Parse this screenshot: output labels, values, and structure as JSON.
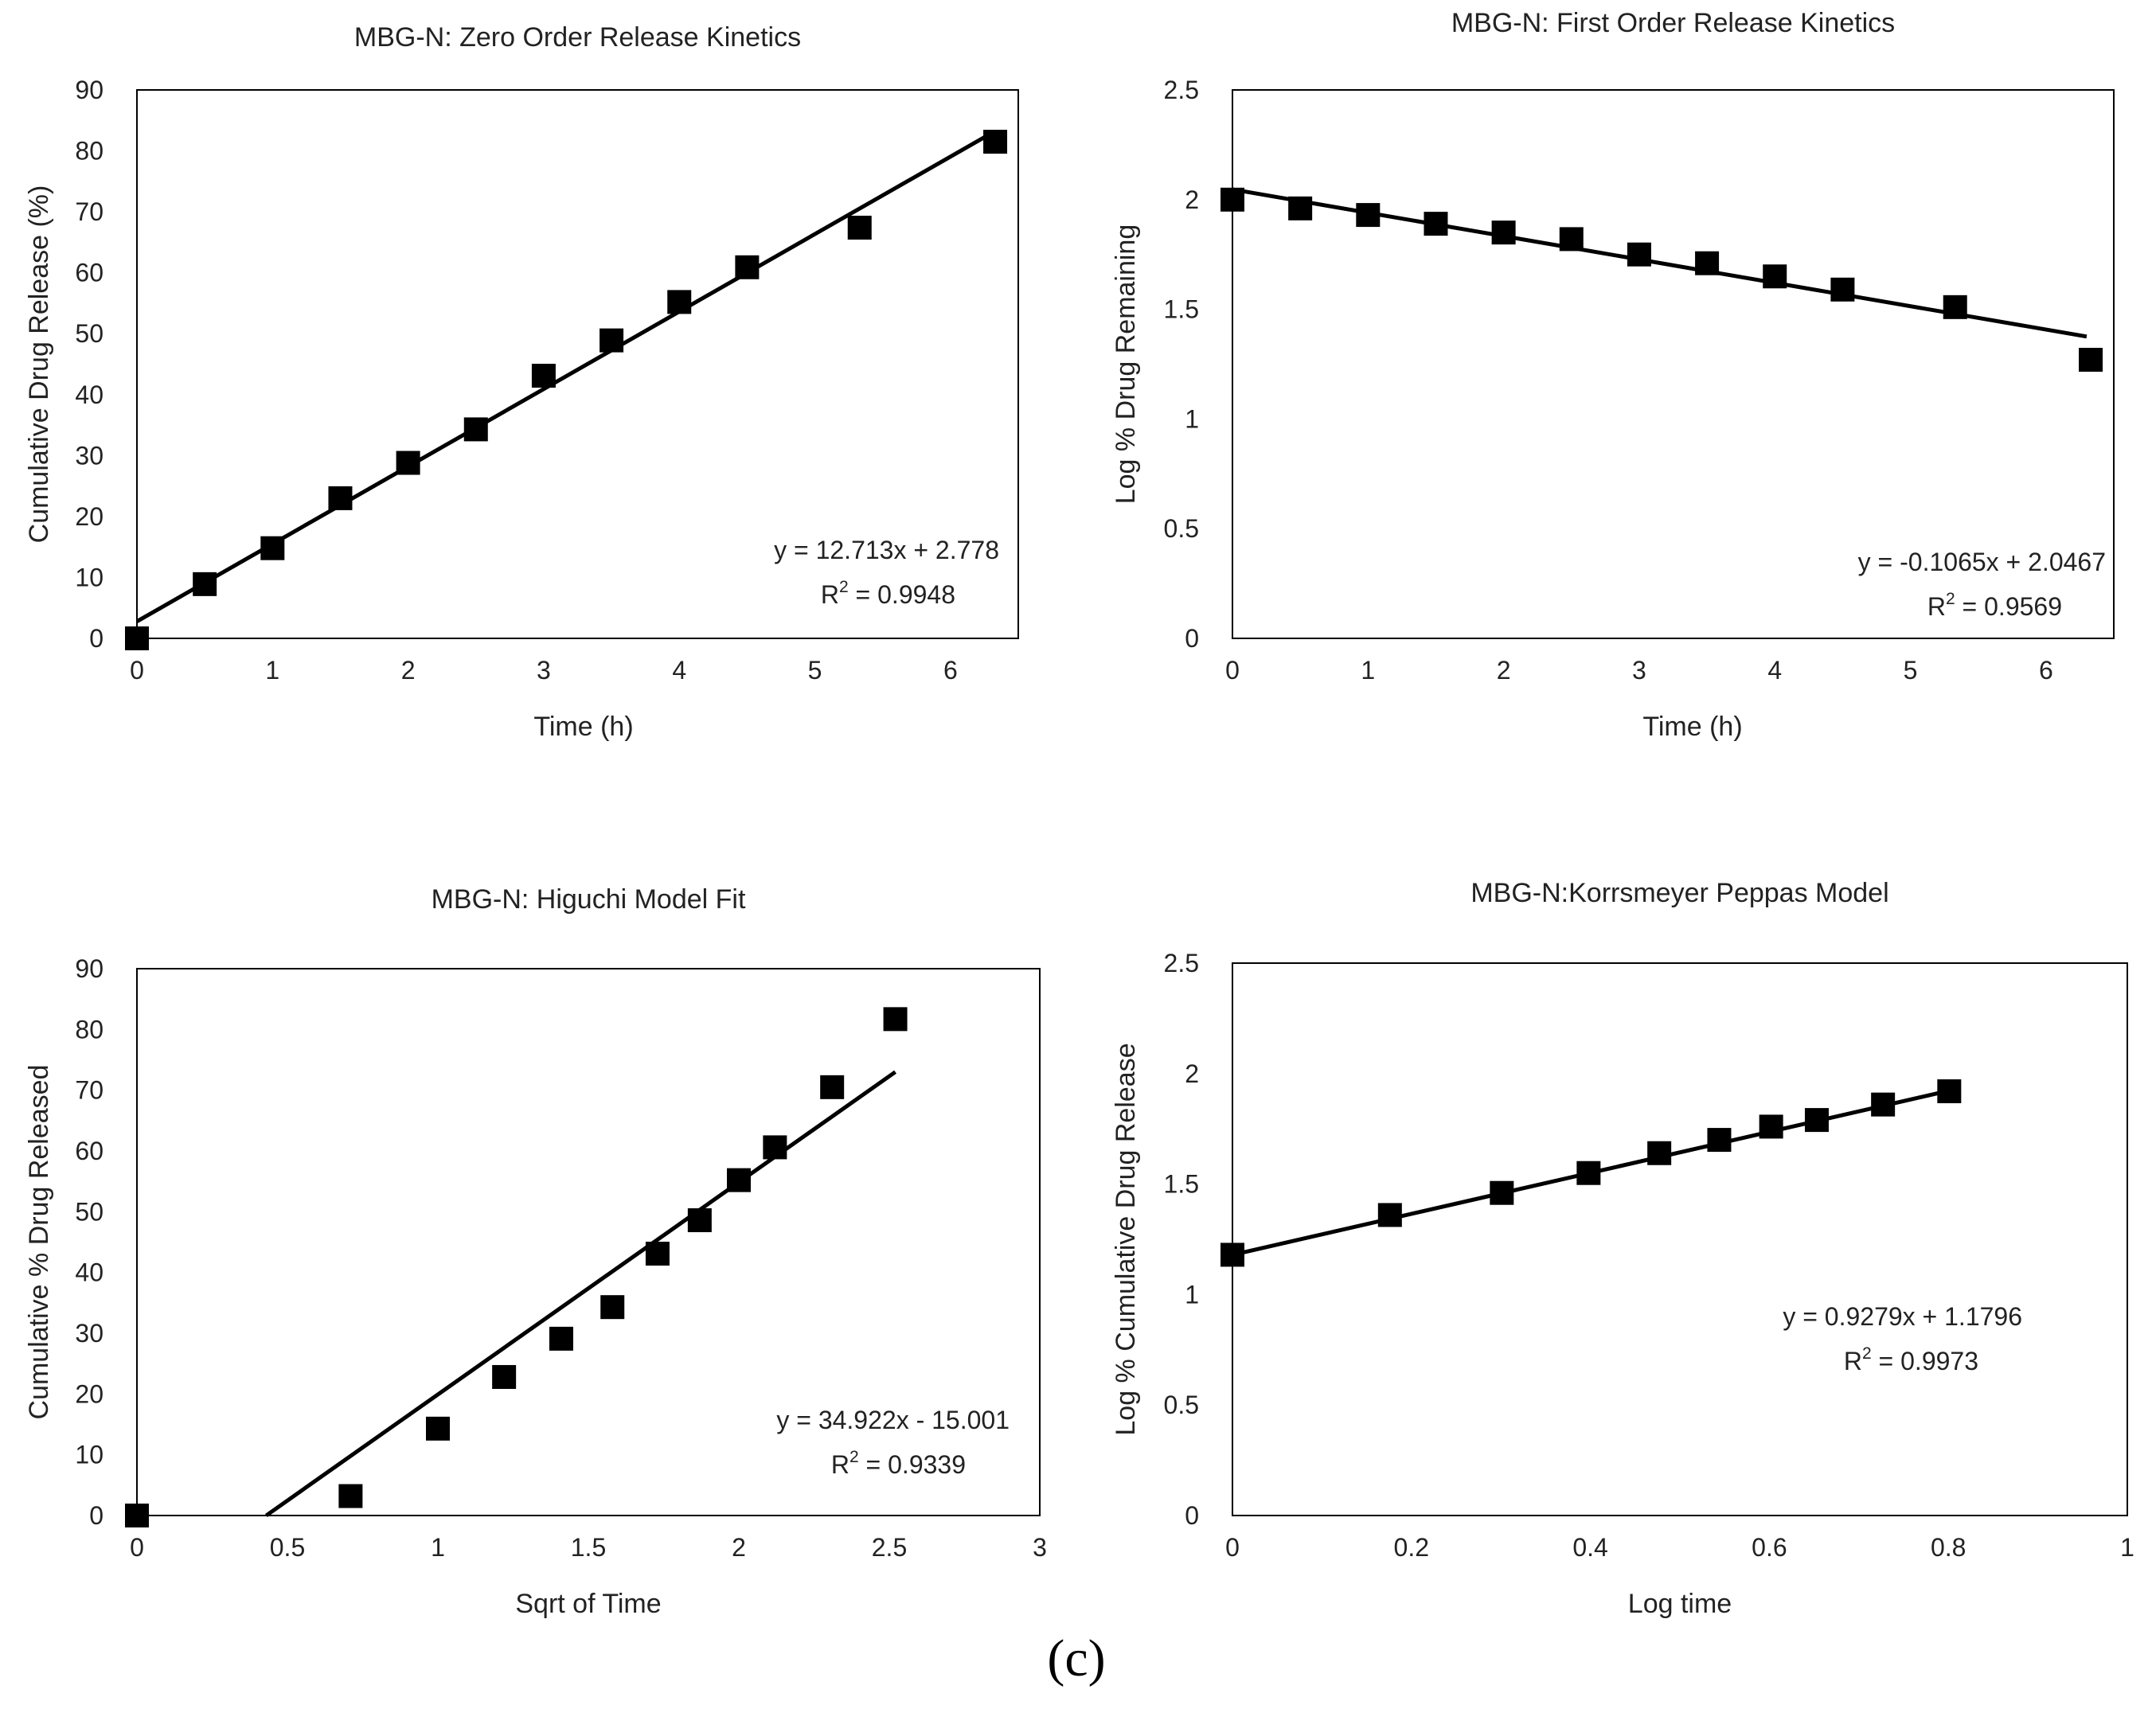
{
  "caption": "(c)",
  "colors": {
    "marker": "#000000",
    "line": "#000000",
    "frame": "#000000",
    "text": "#222222"
  },
  "chart_data": [
    {
      "type": "scatter",
      "title": "MBG-N: Zero Order Release Kinetics",
      "xlabel": "Time (h)",
      "ylabel": "Cumulative Drug Release (%)",
      "xlim": [
        0,
        6.5
      ],
      "ylim": [
        0,
        90
      ],
      "xticks": [
        0,
        1,
        2,
        3,
        4,
        5,
        6
      ],
      "yticks": [
        0,
        10,
        20,
        30,
        40,
        50,
        60,
        70,
        80,
        90
      ],
      "x": [
        0,
        0.5,
        1,
        1.5,
        2,
        2.5,
        3,
        3.5,
        4,
        4.5,
        5.33,
        6.33
      ],
      "y": [
        0,
        8.9,
        14.8,
        23,
        28.8,
        34.3,
        43.1,
        48.9,
        55.2,
        60.9,
        67.4,
        81.5
      ],
      "trendline": {
        "slope": 12.713,
        "intercept": 2.778,
        "x_range": [
          0,
          6.3
        ]
      },
      "equation": "y = 12.713x + 2.778",
      "r2_prefix": "R",
      "r2_value": " = 0.9948"
    },
    {
      "type": "scatter",
      "title": "MBG-N: First Order Release Kinetics",
      "xlabel": "Time (h)",
      "ylabel": "Log % Drug Remaining",
      "xlim": [
        0,
        6.5
      ],
      "ylim": [
        0,
        2.5
      ],
      "xticks": [
        0,
        1,
        2,
        3,
        4,
        5,
        6
      ],
      "yticks": [
        0,
        0.5,
        1,
        1.5,
        2,
        2.5
      ],
      "x": [
        0,
        0.5,
        1,
        1.5,
        2,
        2.5,
        3,
        3.5,
        4,
        4.5,
        5.33,
        6.33
      ],
      "y": [
        2.0,
        1.96,
        1.93,
        1.89,
        1.85,
        1.82,
        1.75,
        1.71,
        1.65,
        1.59,
        1.51,
        1.27
      ],
      "trendline": {
        "slope": -0.1065,
        "intercept": 2.0467,
        "x_range": [
          0,
          6.3
        ]
      },
      "equation": "y = -0.1065x + 2.0467",
      "r2_prefix": "R",
      "r2_value": " = 0.9569"
    },
    {
      "type": "scatter",
      "title": "MBG-N: Higuchi Model Fit",
      "xlabel": "Sqrt of Time",
      "ylabel": "Cumulative % Drug Released",
      "xlim": [
        0,
        3
      ],
      "ylim": [
        0,
        90
      ],
      "xticks": [
        0,
        0.5,
        1,
        1.5,
        2,
        2.5,
        3
      ],
      "yticks": [
        0,
        10,
        20,
        30,
        40,
        50,
        60,
        70,
        80,
        90
      ],
      "x": [
        0,
        0.71,
        1,
        1.22,
        1.41,
        1.58,
        1.73,
        1.87,
        2,
        2.12,
        2.31,
        2.52
      ],
      "y": [
        0,
        3.2,
        14.3,
        22.8,
        29.1,
        34.3,
        43.1,
        48.6,
        55.2,
        60.6,
        70.5,
        81.7
      ],
      "trendline": {
        "slope": 34.922,
        "intercept": -15.001,
        "x_range": [
          0.4296,
          2.52
        ]
      },
      "equation": "y = 34.922x - 15.001",
      "r2_prefix": "R",
      "r2_value": " = 0.9339"
    },
    {
      "type": "scatter",
      "title": "MBG-N:Korrsmeyer Peppas Model",
      "xlabel": "Log time",
      "ylabel": "Log % Cumulative Drug Release",
      "xlim": [
        0,
        1
      ],
      "ylim": [
        0,
        2.5
      ],
      "xticks": [
        0,
        0.2,
        0.4,
        0.6,
        0.8,
        1
      ],
      "yticks": [
        0,
        0.5,
        1,
        1.5,
        2,
        2.5
      ],
      "x": [
        0,
        0.176,
        0.301,
        0.398,
        0.477,
        0.544,
        0.602,
        0.653,
        0.727,
        0.801
      ],
      "y": [
        1.18,
        1.36,
        1.46,
        1.55,
        1.64,
        1.7,
        1.76,
        1.79,
        1.86,
        1.92
      ],
      "trendline": {
        "slope": 0.9279,
        "intercept": 1.1796,
        "x_range": [
          0,
          0.8
        ]
      },
      "equation": "y = 0.9279x + 1.1796",
      "r2_prefix": "R",
      "r2_value": " = 0.9973"
    }
  ]
}
